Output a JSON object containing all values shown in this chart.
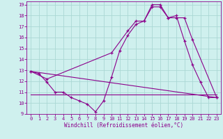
{
  "xlabel": "Windchill (Refroidissement éolien,°C)",
  "bg_color": "#cff0ee",
  "grid_color": "#aad8d4",
  "line_color": "#8b008b",
  "xlim": [
    -0.5,
    23.5
  ],
  "ylim": [
    9,
    19.3
  ],
  "xticks": [
    0,
    1,
    2,
    3,
    4,
    5,
    6,
    7,
    8,
    9,
    10,
    11,
    12,
    13,
    14,
    15,
    16,
    17,
    18,
    19,
    20,
    21,
    22,
    23
  ],
  "yticks": [
    9,
    10,
    11,
    12,
    13,
    14,
    15,
    16,
    17,
    18,
    19
  ],
  "series1_x": [
    0,
    1,
    2,
    3,
    4,
    5,
    6,
    7,
    8,
    9,
    10,
    11,
    12,
    13,
    14,
    15,
    16,
    17,
    18,
    19,
    20,
    21,
    22,
    23
  ],
  "series1_y": [
    12.9,
    12.7,
    11.9,
    11.0,
    11.0,
    10.5,
    10.2,
    9.9,
    9.2,
    10.2,
    12.4,
    14.8,
    16.2,
    17.2,
    17.5,
    18.8,
    18.8,
    17.8,
    18.0,
    15.7,
    13.5,
    11.9,
    10.5,
    10.5
  ],
  "series2_x": [
    0,
    2,
    10,
    12,
    13,
    14,
    15,
    16,
    17,
    18,
    19,
    20,
    23
  ],
  "series2_y": [
    12.9,
    12.2,
    14.6,
    16.6,
    17.5,
    17.5,
    19.0,
    19.0,
    17.8,
    17.8,
    17.8,
    15.8,
    10.5
  ],
  "series3_x": [
    0,
    23
  ],
  "series3_y": [
    12.9,
    10.5
  ],
  "series4_x": [
    0,
    10,
    15,
    20,
    23
  ],
  "series4_y": [
    10.8,
    10.8,
    10.8,
    10.8,
    10.8
  ]
}
